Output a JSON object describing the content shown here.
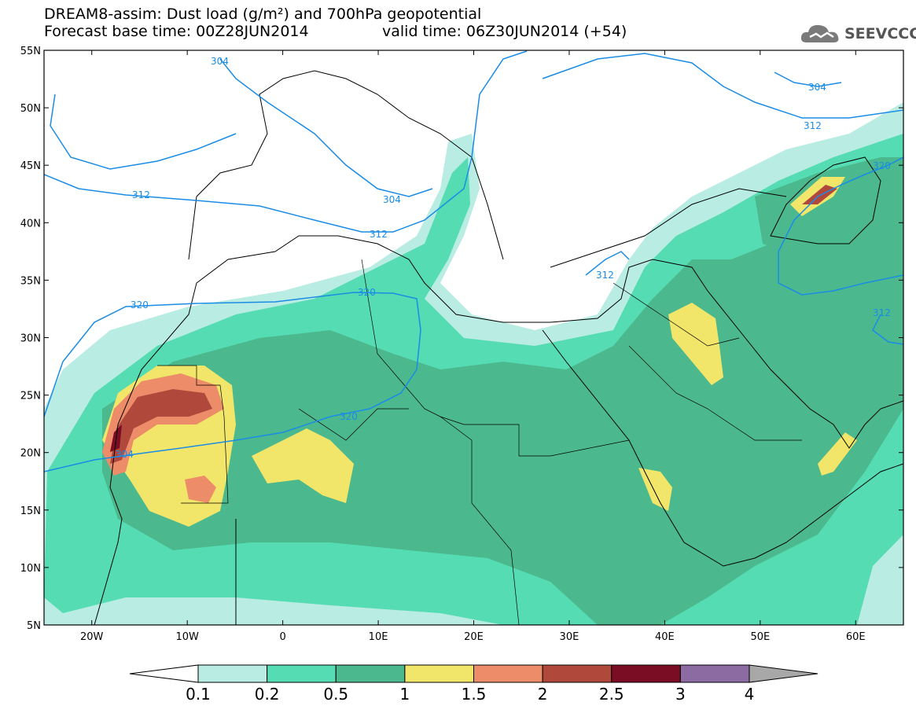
{
  "title": {
    "line1": "DREAM8-assim: Dust load (g/m²) and 700hPa geopotential",
    "line2": "Forecast base time: 00Z28JUN2014",
    "valid": "valid time: 06Z30JUN2014 (+54)"
  },
  "logo": {
    "text": "SEEVCCC",
    "icon": "cloud-icon"
  },
  "map": {
    "lat_range": [
      5,
      55
    ],
    "lon_range": [
      -25,
      65
    ],
    "lat_ticks": [
      "5N",
      "10N",
      "15N",
      "20N",
      "25N",
      "30N",
      "35N",
      "40N",
      "45N",
      "50N",
      "55N"
    ],
    "lon_ticks": [
      "20W",
      "10W",
      "0",
      "10E",
      "20E",
      "30E",
      "40E",
      "50E",
      "60E"
    ],
    "contour_labels": [
      "304",
      "304",
      "312",
      "304",
      "312",
      "312",
      "320",
      "320",
      "320",
      "304",
      "312",
      "320",
      "312"
    ],
    "contour_color": "#1a8ce6"
  },
  "colorbar": {
    "labels": [
      "0.1",
      "0.2",
      "0.5",
      "1",
      "1.5",
      "2",
      "2.5",
      "3",
      "4"
    ],
    "colors": [
      "#ffffff",
      "#b9ece2",
      "#55dcb2",
      "#4cb88e",
      "#f2e66a",
      "#ec8c68",
      "#b0483c",
      "#7a0c24",
      "#8c6aa2",
      "#a8a8a8"
    ]
  }
}
